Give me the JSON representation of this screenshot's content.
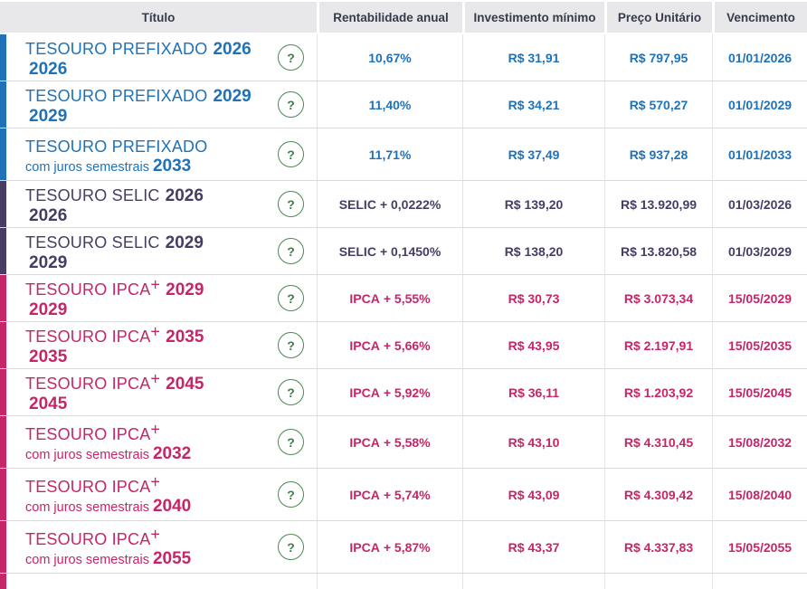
{
  "table": {
    "columns": [
      "Título",
      "Rentabilidade anual",
      "Investimento mínimo",
      "Preço Unitário",
      "Vencimento"
    ],
    "help_icon": "?",
    "colors": {
      "prefixado": "#1f72b8",
      "selic": "#473c63",
      "ipca": "#c62568",
      "header_bg": "#e8e8eb",
      "header_text": "#363a4d",
      "help_green": "#3e7e46"
    },
    "rows": [
      {
        "category": "prefixado",
        "name": "TESOURO PREFIXADO",
        "name_sup": "",
        "sub": "",
        "year": "2026",
        "rate_index": "",
        "rate_value": "10,67%",
        "investimento": "R$ 31,91",
        "preco": "R$ 797,95",
        "vencimento": "01/01/2026"
      },
      {
        "category": "prefixado",
        "name": "TESOURO PREFIXADO",
        "name_sup": "",
        "sub": "",
        "year": "2029",
        "rate_index": "",
        "rate_value": "11,40%",
        "investimento": "R$ 34,21",
        "preco": "R$ 570,27",
        "vencimento": "01/01/2029"
      },
      {
        "category": "prefixado",
        "name": "TESOURO PREFIXADO",
        "name_sup": "",
        "sub": "com juros semestrais",
        "year": "2033",
        "rate_index": "",
        "rate_value": "11,71%",
        "investimento": "R$ 37,49",
        "preco": "R$ 937,28",
        "vencimento": "01/01/2033"
      },
      {
        "category": "selic",
        "name": "TESOURO SELIC",
        "name_sup": "",
        "sub": "",
        "year": "2026",
        "rate_index": "SELIC",
        "rate_value": "+ 0,0222%",
        "investimento": "R$ 139,20",
        "preco": "R$ 13.920,99",
        "vencimento": "01/03/2026"
      },
      {
        "category": "selic",
        "name": "TESOURO SELIC",
        "name_sup": "",
        "sub": "",
        "year": "2029",
        "rate_index": "SELIC",
        "rate_value": "+ 0,1450%",
        "investimento": "R$ 138,20",
        "preco": "R$ 13.820,58",
        "vencimento": "01/03/2029"
      },
      {
        "category": "ipca",
        "name": "TESOURO IPCA",
        "name_sup": "+",
        "sub": "",
        "year": "2029",
        "rate_index": "IPCA",
        "rate_value": "+ 5,55%",
        "investimento": "R$ 30,73",
        "preco": "R$ 3.073,34",
        "vencimento": "15/05/2029"
      },
      {
        "category": "ipca",
        "name": "TESOURO IPCA",
        "name_sup": "+",
        "sub": "",
        "year": "2035",
        "rate_index": "IPCA",
        "rate_value": "+ 5,66%",
        "investimento": "R$ 43,95",
        "preco": "R$ 2.197,91",
        "vencimento": "15/05/2035"
      },
      {
        "category": "ipca",
        "name": "TESOURO IPCA",
        "name_sup": "+",
        "sub": "",
        "year": "2045",
        "rate_index": "IPCA",
        "rate_value": "+ 5,92%",
        "investimento": "R$ 36,11",
        "preco": "R$ 1.203,92",
        "vencimento": "15/05/2045"
      },
      {
        "category": "ipca",
        "name": "TESOURO IPCA",
        "name_sup": "+",
        "sub": "com juros semestrais",
        "year": "2032",
        "rate_index": "IPCA",
        "rate_value": "+ 5,58%",
        "investimento": "R$ 43,10",
        "preco": "R$ 4.310,45",
        "vencimento": "15/08/2032"
      },
      {
        "category": "ipca",
        "name": "TESOURO IPCA",
        "name_sup": "+",
        "sub": "com juros semestrais",
        "year": "2040",
        "rate_index": "IPCA",
        "rate_value": "+ 5,74%",
        "investimento": "R$ 43,09",
        "preco": "R$ 4.309,42",
        "vencimento": "15/08/2040"
      },
      {
        "category": "ipca",
        "name": "TESOURO IPCA",
        "name_sup": "+",
        "sub": "com juros semestrais",
        "year": "2055",
        "rate_index": "IPCA",
        "rate_value": "+ 5,87%",
        "investimento": "R$ 43,37",
        "preco": "R$ 4.337,83",
        "vencimento": "15/05/2055"
      }
    ],
    "partial_row": {
      "category": "ipca"
    }
  }
}
